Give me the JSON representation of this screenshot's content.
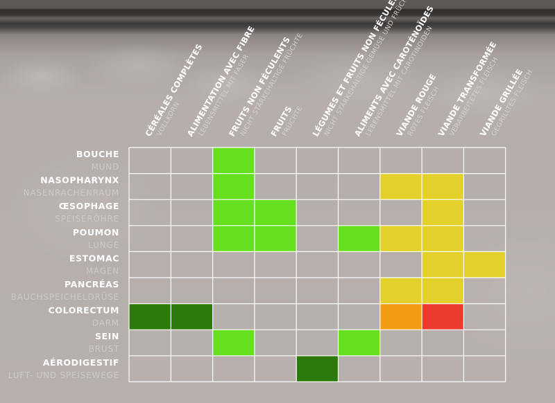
{
  "chart_data": {
    "type": "heatmap",
    "colors": {
      "light_green": "#66e01e",
      "dark_green": "#2d7a0c",
      "yellow": "#e3d02a",
      "orange": "#f49b14",
      "red": "#ea3b2e",
      "grid": "#ffffff"
    },
    "columns": [
      {
        "fr": "CÉRÉALES COMPLÈTES",
        "de": "VOLLKORN"
      },
      {
        "fr": "ALIMENTATION AVEC FIBRE",
        "de": "LEBENSMITTEL MIT FASER"
      },
      {
        "fr": "FRUITS NON FÉCULENTS",
        "de": "NICHT STÄRKEHALTIGE FRÜCHTE"
      },
      {
        "fr": "FRUITS",
        "de": "FRÜCHTE"
      },
      {
        "fr": "LÉGUMES ET FRUITS NON FÉCULENTS",
        "de": "NICHT STÄRKEHALTIGE GEMÜSE UND FRÜCHTE"
      },
      {
        "fr": "ALIMENTS AVEC CAROTÉNOÏDES",
        "de": "LEBENSMITTEL MIT CAROTINOIDEN"
      },
      {
        "fr": "VIANDE ROUGE",
        "de": "ROTES FLEISCH"
      },
      {
        "fr": "VIANDE TRANSFORMÉE",
        "de": "VERARBEITETES FLEISCH"
      },
      {
        "fr": "VIANDE GRILLÉE",
        "de": "GEGRILLTES FLEISCH"
      }
    ],
    "rows": [
      {
        "fr": "BOUCHE",
        "de": "MUND"
      },
      {
        "fr": "NASOPHARYNX",
        "de": "NASENRACHENRAUM"
      },
      {
        "fr": "ŒSOPHAGE",
        "de": "SPEISERÖHRE"
      },
      {
        "fr": "POUMON",
        "de": "LUNGE"
      },
      {
        "fr": "ESTOMAC",
        "de": "MAGEN"
      },
      {
        "fr": "PANCRÉAS",
        "de": "BAUCHSPEICHELDRÜSE"
      },
      {
        "fr": "COLORECTUM",
        "de": "DARM"
      },
      {
        "fr": "SEIN",
        "de": "BRUST"
      },
      {
        "fr": "AÉRODIGESTIF",
        "de": "LUFT- UND SPEISEWEGE"
      }
    ],
    "cells": [
      {
        "row": 0,
        "col": 2,
        "level": "light_green"
      },
      {
        "row": 1,
        "col": 2,
        "level": "light_green"
      },
      {
        "row": 1,
        "col": 6,
        "level": "yellow"
      },
      {
        "row": 1,
        "col": 7,
        "level": "yellow"
      },
      {
        "row": 2,
        "col": 2,
        "level": "light_green"
      },
      {
        "row": 2,
        "col": 3,
        "level": "light_green"
      },
      {
        "row": 2,
        "col": 7,
        "level": "yellow"
      },
      {
        "row": 3,
        "col": 2,
        "level": "light_green"
      },
      {
        "row": 3,
        "col": 3,
        "level": "light_green"
      },
      {
        "row": 3,
        "col": 5,
        "level": "light_green"
      },
      {
        "row": 3,
        "col": 6,
        "level": "yellow"
      },
      {
        "row": 3,
        "col": 7,
        "level": "yellow"
      },
      {
        "row": 4,
        "col": 7,
        "level": "yellow"
      },
      {
        "row": 4,
        "col": 8,
        "level": "yellow"
      },
      {
        "row": 5,
        "col": 6,
        "level": "yellow"
      },
      {
        "row": 5,
        "col": 7,
        "level": "yellow"
      },
      {
        "row": 6,
        "col": 0,
        "level": "dark_green"
      },
      {
        "row": 6,
        "col": 1,
        "level": "dark_green"
      },
      {
        "row": 6,
        "col": 6,
        "level": "orange"
      },
      {
        "row": 6,
        "col": 7,
        "level": "red"
      },
      {
        "row": 7,
        "col": 2,
        "level": "light_green"
      },
      {
        "row": 7,
        "col": 5,
        "level": "light_green"
      },
      {
        "row": 8,
        "col": 4,
        "level": "dark_green"
      }
    ]
  }
}
